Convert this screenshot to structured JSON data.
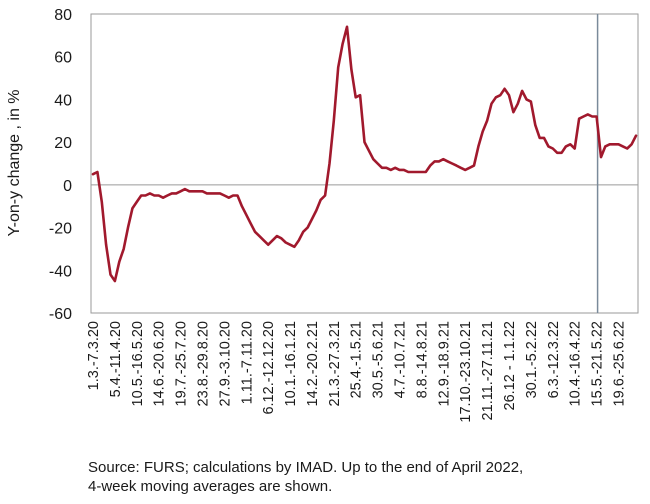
{
  "chart_data": {
    "type": "line",
    "ylabel": "Y-on-y change , in %",
    "ylim": [
      -60,
      80
    ],
    "y_ticks": [
      -60,
      -40,
      -20,
      0,
      20,
      40,
      60,
      80
    ],
    "grid": false,
    "x_tick_labels": [
      "1.3.-7.3.20",
      "5.4.-11.4.20",
      "10.5.-16.5.20",
      "14.6.-20.6.20",
      "19.7.-25.7.20",
      "23.8.-29.8.20",
      "27.9.-3.10.20",
      "1.11.-7.11.20",
      "6.12.-12.12.20",
      "10.1.-16.1.21",
      "14.2.-20.2.21",
      "21.3.-27.3.21",
      "25.4.-1.5.21",
      "30.5.-5.6.21",
      "4.7.-10.7.21",
      "8.8.-14.8.21",
      "12.9.-18.9.21",
      "17.10.-23.10.21",
      "21.11.-27.11.21",
      "26.12 - 1.1.22",
      "30.1.-5.2.22",
      "6.3.-12.3.22",
      "10.4.-16.4.22",
      "15.5.-21.5.22",
      "19.6.-25.6.22"
    ],
    "divider_after_index": 115,
    "series": [
      {
        "color": "#a1192d",
        "values": [
          5,
          6,
          -8,
          -28,
          -42,
          -45,
          -36,
          -30,
          -20,
          -11,
          -8,
          -5,
          -5,
          -4,
          -5,
          -5,
          -6,
          -5,
          -4,
          -4,
          -3,
          -2,
          -3,
          -3,
          -3,
          -3,
          -4,
          -4,
          -4,
          -4,
          -5,
          -6,
          -5,
          -5,
          -10,
          -14,
          -18,
          -22,
          -24,
          -26,
          -28,
          -26,
          -24,
          -25,
          -27,
          -28,
          -29,
          -26,
          -22,
          -20,
          -16,
          -12,
          -7,
          -5,
          10,
          30,
          55,
          66,
          74,
          54,
          41,
          42,
          20,
          16,
          12,
          10,
          8,
          8,
          7,
          8,
          7,
          7,
          6,
          6,
          6,
          6,
          6,
          9,
          11,
          11,
          12,
          11,
          10,
          9,
          8,
          7,
          8,
          9,
          18,
          25,
          30,
          38,
          41,
          42,
          45,
          42,
          34,
          38,
          44,
          40,
          39,
          28,
          22,
          22,
          18,
          17,
          15,
          15,
          18,
          19,
          17,
          31,
          32,
          33,
          32,
          32,
          13,
          18,
          19,
          19,
          19,
          18,
          17,
          19,
          23
        ]
      }
    ]
  },
  "source_note": {
    "line1": "Source: FURS; calculations by IMAD. Up to the end of April 2022,",
    "line2": "4-week moving averages are shown."
  }
}
